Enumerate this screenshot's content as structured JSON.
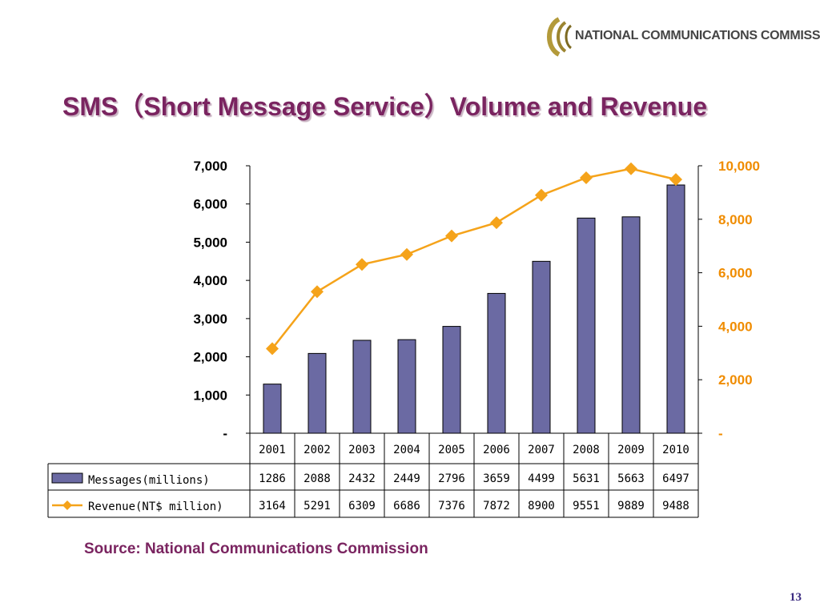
{
  "header": {
    "logo_text": "NATIONAL COMMUNICATIONS COMMISSION",
    "title": "SMS（Short Message Service）Volume and Revenue"
  },
  "footer": {
    "source": "Source: National Communications Commission",
    "page_number": "13"
  },
  "colors": {
    "title": "#7a2460",
    "bar": "#6b6aa3",
    "line": "#f5a31a",
    "right_axis": "#f08c00"
  },
  "chart_data": {
    "type": "bar",
    "categories": [
      "2001",
      "2002",
      "2003",
      "2004",
      "2005",
      "2006",
      "2007",
      "2008",
      "2009",
      "2010"
    ],
    "series": [
      {
        "name": "Messages(millions)",
        "type": "bar",
        "axis": "left",
        "values": [
          1286,
          2088,
          2432,
          2449,
          2796,
          3659,
          4499,
          5631,
          5663,
          6497
        ]
      },
      {
        "name": "Revenue(NT$ million)",
        "type": "line",
        "axis": "right",
        "values": [
          3164,
          5291,
          6309,
          6686,
          7376,
          7872,
          8900,
          9551,
          9889,
          9488
        ]
      }
    ],
    "y_left": {
      "ylim": [
        0,
        7000
      ],
      "ticks": [
        "-",
        "1,000",
        "2,000",
        "3,000",
        "4,000",
        "5,000",
        "6,000",
        "7,000"
      ]
    },
    "y_right": {
      "ylim": [
        0,
        10000
      ],
      "ticks": [
        "-",
        "2,000",
        "4,000",
        "6,000",
        "8,000",
        "10,000"
      ]
    },
    "grid": false,
    "legend": "data table below chart"
  }
}
